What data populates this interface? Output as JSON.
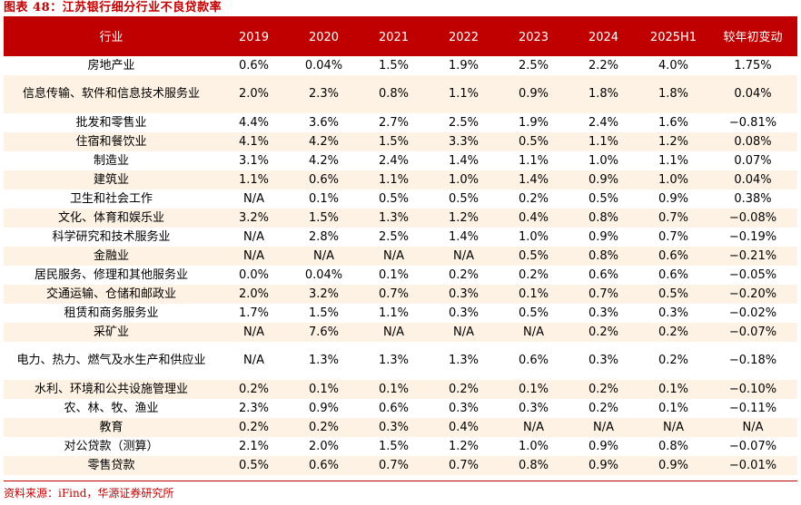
{
  "figure": {
    "title": "图表 48：江苏银行细分行业不良贷款率",
    "source": "资料来源：iFind，华源证券研究所"
  },
  "table": {
    "headers": [
      "行业",
      "2019",
      "2020",
      "2021",
      "2022",
      "2023",
      "2024",
      "2025H1",
      "较年初变动"
    ],
    "rows": [
      [
        "房地产业",
        "0.6%",
        "0.04%",
        "1.5%",
        "1.9%",
        "2.5%",
        "2.2%",
        "4.0%",
        "1.75%"
      ],
      [
        "信息传输、软件和信息技术服务业",
        "2.0%",
        "2.3%",
        "0.8%",
        "1.1%",
        "0.9%",
        "1.8%",
        "1.8%",
        "0.04%"
      ],
      [
        "批发和零售业",
        "4.4%",
        "3.6%",
        "2.7%",
        "2.5%",
        "1.9%",
        "2.4%",
        "1.6%",
        "−0.81%"
      ],
      [
        "住宿和餐饮业",
        "4.1%",
        "4.2%",
        "1.5%",
        "3.3%",
        "0.5%",
        "1.1%",
        "1.2%",
        "0.08%"
      ],
      [
        "制造业",
        "3.1%",
        "4.2%",
        "2.4%",
        "1.4%",
        "1.1%",
        "1.0%",
        "1.1%",
        "0.07%"
      ],
      [
        "建筑业",
        "1.1%",
        "0.6%",
        "1.1%",
        "1.0%",
        "1.4%",
        "0.9%",
        "1.0%",
        "0.04%"
      ],
      [
        "卫生和社会工作",
        "N/A",
        "0.1%",
        "0.5%",
        "0.5%",
        "0.2%",
        "0.5%",
        "0.9%",
        "0.38%"
      ],
      [
        "文化、体育和娱乐业",
        "3.2%",
        "1.5%",
        "1.3%",
        "1.2%",
        "0.4%",
        "0.8%",
        "0.7%",
        "−0.08%"
      ],
      [
        "科学研究和技术服务业",
        "N/A",
        "2.8%",
        "2.5%",
        "1.4%",
        "1.0%",
        "0.9%",
        "0.7%",
        "−0.19%"
      ],
      [
        "金融业",
        "N/A",
        "N/A",
        "N/A",
        "N/A",
        "0.5%",
        "0.8%",
        "0.6%",
        "−0.21%"
      ],
      [
        "居民服务、修理和其他服务业",
        "0.0%",
        "0.04%",
        "0.1%",
        "0.2%",
        "0.2%",
        "0.6%",
        "0.6%",
        "−0.05%"
      ],
      [
        "交通运输、仓储和邮政业",
        "2.0%",
        "3.2%",
        "0.7%",
        "0.3%",
        "0.1%",
        "0.7%",
        "0.5%",
        "−0.20%"
      ],
      [
        "租赁和商务服务业",
        "1.7%",
        "1.5%",
        "1.1%",
        "0.3%",
        "0.5%",
        "0.3%",
        "0.3%",
        "−0.02%"
      ],
      [
        "采矿业",
        "N/A",
        "7.6%",
        "N/A",
        "N/A",
        "N/A",
        "0.2%",
        "0.2%",
        "−0.07%"
      ],
      [
        "电力、热力、燃气及水生产和供应业",
        "N/A",
        "1.3%",
        "1.3%",
        "1.3%",
        "0.6%",
        "0.3%",
        "0.2%",
        "−0.18%"
      ],
      [
        "水利、环境和公共设施管理业",
        "0.2%",
        "0.1%",
        "0.1%",
        "0.2%",
        "0.1%",
        "0.2%",
        "0.1%",
        "−0.10%"
      ],
      [
        "农、林、牧、渔业",
        "2.3%",
        "0.9%",
        "0.6%",
        "0.3%",
        "0.3%",
        "0.2%",
        "0.1%",
        "−0.11%"
      ],
      [
        "教育",
        "0.2%",
        "0.2%",
        "0.3%",
        "0.4%",
        "N/A",
        "N/A",
        "N/A",
        "N/A"
      ],
      [
        "对公贷款（测算）",
        "2.1%",
        "2.0%",
        "1.5%",
        "1.2%",
        "1.0%",
        "0.9%",
        "0.8%",
        "−0.07%"
      ],
      [
        "零售贷款",
        "0.5%",
        "0.6%",
        "0.7%",
        "0.7%",
        "0.8%",
        "0.9%",
        "0.9%",
        "−0.01%"
      ]
    ]
  },
  "colors": {
    "accent": "#c00000",
    "row_alt": "#fdf2e3"
  }
}
